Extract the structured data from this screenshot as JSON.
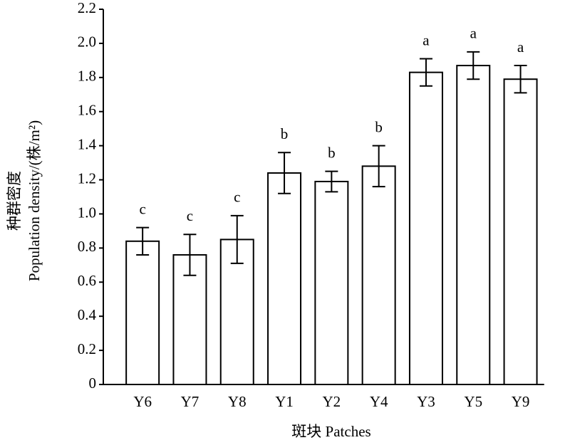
{
  "chart_data": {
    "type": "bar",
    "x_label": "斑块 Patches",
    "y_label_lines": [
      "种群密度",
      "Population density/(株/m²)"
    ],
    "categories": [
      "Y6",
      "Y7",
      "Y8",
      "Y1",
      "Y2",
      "Y4",
      "Y3",
      "Y5",
      "Y9"
    ],
    "values": [
      0.84,
      0.76,
      0.85,
      1.24,
      1.19,
      1.28,
      1.83,
      1.87,
      1.79
    ],
    "errors": [
      0.08,
      0.12,
      0.14,
      0.12,
      0.06,
      0.12,
      0.08,
      0.08,
      0.08
    ],
    "significance": [
      "c",
      "c",
      "c",
      "b",
      "b",
      "b",
      "a",
      "a",
      "a"
    ],
    "color": "#ffffff",
    "ylim": [
      0,
      2.2
    ],
    "yticks": [
      0,
      0.2,
      0.4,
      0.6,
      0.8,
      {
        "value": 1,
        "label": "1.0"
      },
      1.2,
      1.4,
      1.6,
      1.8,
      {
        "value": 2,
        "label": "2.0"
      },
      2.2
    ],
    "grid": false
  }
}
